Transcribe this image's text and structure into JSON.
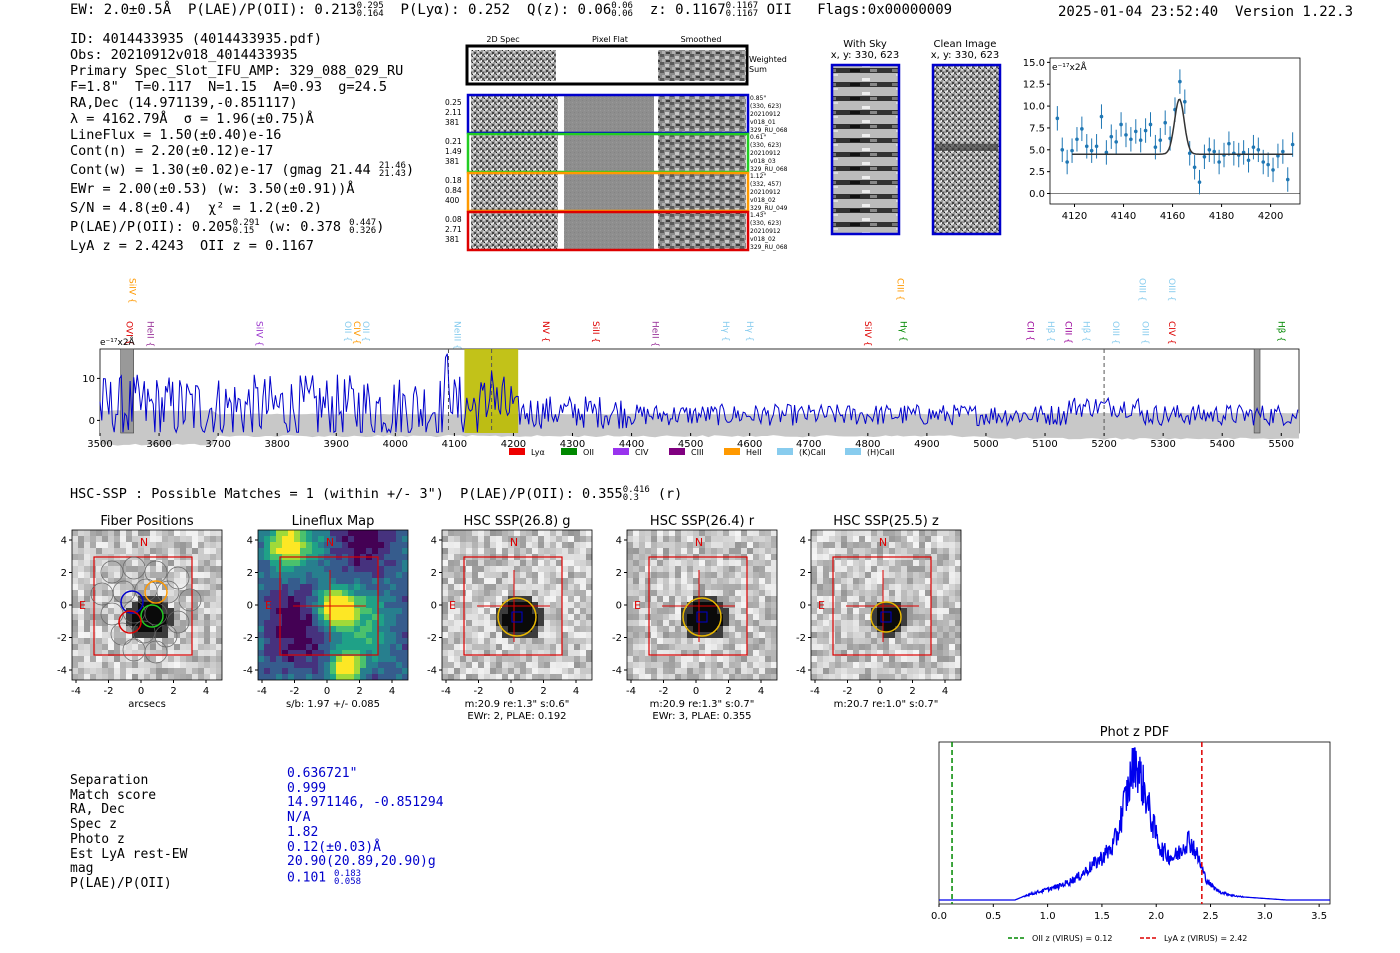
{
  "header": {
    "line": "EW: 2.0±0.5Å  P(LAE)/P(OII): 0.213",
    "plae_sup": "0.295",
    "plae_sub": "0.164",
    "plya": "P(Lyα): 0.252",
    "qz": "Q(z): 0.06",
    "qz_sup": "0.06",
    "qz_sub": "0.06",
    "z": "z: 0.1167",
    "z_sup": "0.1167",
    "z_sub": "0.1167",
    "z_tail": "OII   Flags:0x00000009",
    "right": "2025-01-04 23:52:40  Version 1.22.3"
  },
  "info": {
    "id": "ID: 4014433935 (4014433935.pdf)",
    "obs": "Obs: 20210912v018_4014433935",
    "primary": "Primary Spec_Slot_IFU_AMP: 329_088_029_RU",
    "fparams": "F=1.8\"  T=0.117  N=1.15  A=0.93  g=24.5",
    "radec": "RA,Dec (14.971139,-0.851117)",
    "lambda": "λ = 4162.79Å  σ = 1.96(±0.75)Å",
    "lineflux": "LineFlux = 1.50(±0.40)e-16",
    "contn": "Cont(n) = 2.20(±0.12)e-17",
    "contw": "Cont(w) = 1.30(±0.02)e-17 (gmag 21.44",
    "contw_sup": "21.46",
    "contw_sub": "21.43",
    "contw_close": ")",
    "ewr": "EWr = 2.00(±0.53) (w: 3.50(±0.91))Å",
    "sn": "S/N = 4.8(±0.4)  χ² = 1.2(±0.2)",
    "plae": "P(LAE)/P(OII): 0.205",
    "plae_sup": "0.291",
    "plae_sub": "0.15",
    "plae_w": "(w: 0.378",
    "plae_w_sup": "0.447",
    "plae_w_sub": "0.326",
    "plae_w_close": ")",
    "lya": "LyA z = 2.4243  OII z = 0.1167"
  },
  "cutouts": {
    "headers": [
      "2D Spec",
      "Pixel Flat",
      "Smoothed"
    ],
    "weighted_sum": [
      "Weighted",
      "Sum"
    ],
    "rows": [
      {
        "color": "#0000cc",
        "left": [
          "0.25",
          "2.11",
          "381"
        ],
        "right": [
          "0.85\"",
          "(330, 623)",
          "20210912",
          "v018_01",
          "329_RU_068"
        ]
      },
      {
        "color": "#22cc22",
        "left": [
          "0.21",
          "1.49",
          "381"
        ],
        "right": [
          "0.61\"",
          "(330, 623)",
          "20210912",
          "v018_03",
          "329_RU_068"
        ]
      },
      {
        "color": "#ff9900",
        "left": [
          "0.18",
          "0.84",
          "400"
        ],
        "right": [
          "1.12\"",
          "(332, 457)",
          "20210912",
          "v018_02",
          "329_RU_049"
        ]
      },
      {
        "color": "#dd0000",
        "left": [
          "0.08",
          "2.71",
          "381"
        ],
        "right": [
          "1.43\"",
          "(330, 623)",
          "20210912",
          "v018_02",
          "329_RU_068"
        ]
      }
    ],
    "with_sky": {
      "title": "With Sky",
      "coords": "x, y: 330, 623"
    },
    "clean": {
      "title": "Clean Image",
      "coords": "x, y: 330, 623"
    }
  },
  "chart_data": [
    {
      "id": "line_fit",
      "type": "scatter",
      "title": "",
      "units_label": "e⁻¹⁷x2Å",
      "xlim": [
        4110,
        4212
      ],
      "ylim": [
        -1.2,
        15.5
      ],
      "xticks": [
        4120,
        4140,
        4160,
        4180,
        4200
      ],
      "yticks": [
        0.0,
        2.5,
        5.0,
        7.5,
        10.0,
        12.5,
        15.0
      ],
      "series": [
        {
          "name": "data",
          "x": [
            4113,
            4115,
            4117,
            4119,
            4121,
            4123,
            4125,
            4127,
            4129,
            4131,
            4133,
            4135,
            4137,
            4139,
            4141,
            4143,
            4145,
            4147,
            4149,
            4151,
            4153,
            4155,
            4157,
            4159,
            4161,
            4163,
            4165,
            4167,
            4169,
            4171,
            4173,
            4175,
            4177,
            4179,
            4181,
            4183,
            4185,
            4187,
            4189,
            4191,
            4193,
            4195,
            4197,
            4199,
            4201,
            4203,
            4205,
            4207,
            4209
          ],
          "values": [
            8.6,
            5.0,
            3.6,
            4.9,
            6.2,
            7.4,
            5.4,
            4.9,
            5.4,
            8.8,
            4.7,
            6.5,
            5.9,
            7.9,
            6.7,
            6.2,
            7.1,
            6.1,
            7.2,
            7.9,
            5.3,
            6.1,
            8.1,
            6.3,
            9.6,
            12.8,
            10.5,
            4.6,
            3.0,
            1.3,
            4.2,
            5.0,
            4.8,
            3.6,
            4.4,
            5.7,
            4.6,
            4.4,
            4.7,
            3.8,
            5.3,
            5.0,
            3.6,
            3.3,
            2.7,
            4.3,
            4.8,
            1.6,
            5.6
          ]
        },
        {
          "name": "fit",
          "center": 4162.79,
          "sigma": 1.96,
          "baseline": 4.5,
          "peak": 10.8
        }
      ]
    },
    {
      "id": "full_spectrum",
      "type": "line",
      "units_label": "e⁻¹⁷x2Å",
      "xlim": [
        3500,
        5530
      ],
      "ylim": [
        -3,
        17
      ],
      "xticks": [
        3500,
        3600,
        3700,
        3800,
        3900,
        4000,
        4100,
        4200,
        4300,
        4400,
        4500,
        4600,
        4700,
        4800,
        4900,
        5000,
        5100,
        5200,
        5300,
        5400,
        5500
      ],
      "yticks": [
        0,
        10
      ],
      "highlight": [
        4117,
        4208
      ],
      "masked": [
        [
          3535,
          3557
        ],
        [
          5454,
          5464
        ]
      ],
      "dashed_lines": [
        4090,
        4163,
        5200
      ],
      "lines": [
        {
          "label": "OVI",
          "x": 3540,
          "color": "#dd0000",
          "tier": 1
        },
        {
          "label": "SiIV",
          "x": 3545,
          "color": "#ff9900",
          "tier": 0
        },
        {
          "label": "HeII",
          "x": 3575,
          "color": "#993399",
          "tier": 1
        },
        {
          "label": "SiIV",
          "x": 3760,
          "color": "#9933cc",
          "tier": 1
        },
        {
          "label": "OII",
          "x": 3910,
          "color": "#88ccee",
          "tier": 1
        },
        {
          "label": "CIV",
          "x": 3925,
          "color": "#ff9900",
          "tier": 1
        },
        {
          "label": "OII",
          "x": 3940,
          "color": "#88ccee",
          "tier": 1
        },
        {
          "label": "NeIII",
          "x": 4095,
          "color": "#88ccee",
          "tier": 1
        },
        {
          "label": "NV",
          "x": 4245,
          "color": "#dd0000",
          "tier": 1
        },
        {
          "label": "SiII",
          "x": 4330,
          "color": "#dd0000",
          "tier": 1
        },
        {
          "label": "HeII",
          "x": 4430,
          "color": "#993399",
          "tier": 1
        },
        {
          "label": "Hγ",
          "x": 4550,
          "color": "#88ccee",
          "tier": 1
        },
        {
          "label": "Hγ",
          "x": 4590,
          "color": "#88ccee",
          "tier": 1
        },
        {
          "label": "SiIV",
          "x": 4790,
          "color": "#dd0000",
          "tier": 1
        },
        {
          "label": "CIII",
          "x": 4845,
          "color": "#ff9900",
          "tier": 0
        },
        {
          "label": "Hγ",
          "x": 4850,
          "color": "#008800",
          "tier": 1
        },
        {
          "label": "CII",
          "x": 5065,
          "color": "#990099",
          "tier": 1
        },
        {
          "label": "Hβ",
          "x": 5100,
          "color": "#88ccee",
          "tier": 1
        },
        {
          "label": "CIII",
          "x": 5130,
          "color": "#990099",
          "tier": 1
        },
        {
          "label": "Hβ",
          "x": 5160,
          "color": "#88ccee",
          "tier": 1
        },
        {
          "label": "OIII",
          "x": 5210,
          "color": "#88ccee",
          "tier": 1
        },
        {
          "label": "OIII",
          "x": 5255,
          "color": "#88ccee",
          "tier": 0
        },
        {
          "label": "OIII",
          "x": 5260,
          "color": "#88ccee",
          "tier": 1
        },
        {
          "label": "CIV",
          "x": 5305,
          "color": "#dd0000",
          "tier": 1
        },
        {
          "label": "OIII",
          "x": 5305,
          "color": "#88ccee",
          "tier": 0
        },
        {
          "label": "Hβ",
          "x": 5490,
          "color": "#008800",
          "tier": 1
        }
      ],
      "legend": [
        {
          "label": "Lyα",
          "color": "#ee0000"
        },
        {
          "label": "OII",
          "color": "#008800"
        },
        {
          "label": "CIV",
          "color": "#9933ee"
        },
        {
          "label": "CIII",
          "color": "#800080"
        },
        {
          "label": "HeII",
          "color": "#ff9900"
        },
        {
          "label": "(K)CaII",
          "color": "#88ccee"
        },
        {
          "label": "(H)CaII",
          "color": "#88ccee"
        }
      ]
    },
    {
      "id": "photz_pdf",
      "type": "line",
      "title": "Phot z PDF",
      "xlim": [
        0,
        3.6
      ],
      "xticks": [
        0.0,
        0.5,
        1.0,
        1.5,
        2.0,
        2.5,
        3.0,
        3.5
      ],
      "markers": [
        {
          "label": "OII z (VIRUS) = 0.12",
          "x": 0.12,
          "color": "#008800"
        },
        {
          "label": "LyA z (VIRUS) = 2.42",
          "x": 2.42,
          "color": "#dd0000"
        }
      ],
      "series": [
        {
          "name": "pdf",
          "x": [
            0,
            0.7,
            0.8,
            0.9,
            1.0,
            1.1,
            1.2,
            1.3,
            1.4,
            1.5,
            1.6,
            1.65,
            1.7,
            1.75,
            1.8,
            1.85,
            1.9,
            1.95,
            2.0,
            2.05,
            2.1,
            2.15,
            2.2,
            2.25,
            2.3,
            2.35,
            2.4,
            2.45,
            2.5,
            2.55,
            2.6,
            2.7,
            2.8,
            3.0,
            3.2,
            3.6
          ],
          "values": [
            0.0,
            0.0,
            0.03,
            0.05,
            0.07,
            0.09,
            0.12,
            0.16,
            0.22,
            0.28,
            0.35,
            0.45,
            0.62,
            0.75,
            0.95,
            0.82,
            0.7,
            0.55,
            0.42,
            0.33,
            0.3,
            0.28,
            0.3,
            0.36,
            0.4,
            0.34,
            0.25,
            0.15,
            0.1,
            0.07,
            0.05,
            0.03,
            0.02,
            0.01,
            0.0,
            0.0
          ]
        }
      ]
    }
  ],
  "hsc": {
    "header": "HSC-SSP : Possible Matches = 1 (within +/- 3\")  P(LAE)/P(OII): 0.355",
    "header_sup": "0.416",
    "header_sub": "0.3",
    "header_tail": "(r)",
    "panels": [
      {
        "title": "Fiber Positions",
        "caption1": "arcsecs",
        "caption2": "",
        "kind": "fiber"
      },
      {
        "title": "Lineflux Map",
        "caption1": "s/b: 1.97 +/- 0.085",
        "caption2": "",
        "kind": "flux"
      },
      {
        "title": "HSC SSP(26.8) g",
        "caption1": "m:20.9  re:1.3\"  s:0.6\"",
        "caption2": "EWr: 2, PLAE: 0.192",
        "kind": "g"
      },
      {
        "title": "HSC SSP(26.4) r",
        "caption1": "m:20.9  re:1.3\"  s:0.7\"",
        "caption2": "EWr: 3, PLAE: 0.355",
        "kind": "r"
      },
      {
        "title": "HSC SSP(25.5) z",
        "caption1": "m:20.7  re:1.0\"  s:0.7\"",
        "caption2": "",
        "kind": "z"
      }
    ],
    "ticks": [
      "-4",
      "-2",
      "0",
      "2",
      "4"
    ],
    "compass_n": "N",
    "compass_e": "E"
  },
  "match": {
    "labels": [
      "Separation",
      "Match score",
      "RA, Dec",
      "Spec z",
      "Photo z",
      "Est LyA rest-EW",
      "mag",
      "P(LAE)/P(OII)"
    ],
    "values": [
      "0.636721\"",
      "0.999",
      "14.971146, -0.851294",
      "N/A",
      "1.82",
      "0.12(±0.03)Å",
      "20.90(20.89,20.90)g",
      "0.101"
    ],
    "plae_sup": "0.183",
    "plae_sub": "0.058"
  }
}
